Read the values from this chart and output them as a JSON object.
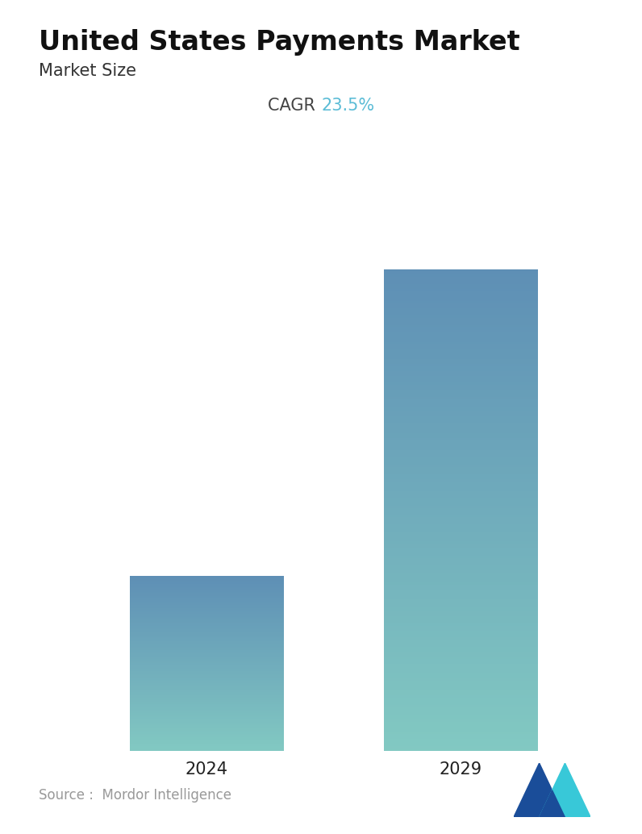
{
  "title": "United States Payments Market",
  "subtitle": "Market Size",
  "cagr_label": "CAGR ",
  "cagr_value": "23.5%",
  "cagr_color": "#5bbcd6",
  "cagr_text_color": "#444444",
  "categories": [
    "2024",
    "2029"
  ],
  "values": [
    1.0,
    2.75
  ],
  "bar_top_color": "#5e8fb5",
  "bar_bottom_color": "#82c9c2",
  "source_text": "Source :  Mordor Intelligence",
  "background_color": "#ffffff",
  "title_fontsize": 24,
  "subtitle_fontsize": 15,
  "tick_fontsize": 15,
  "source_fontsize": 12,
  "cagr_fontsize": 15,
  "bar_width": 0.28,
  "ylim": [
    0,
    3.1
  ],
  "positions": [
    0.27,
    0.73
  ]
}
